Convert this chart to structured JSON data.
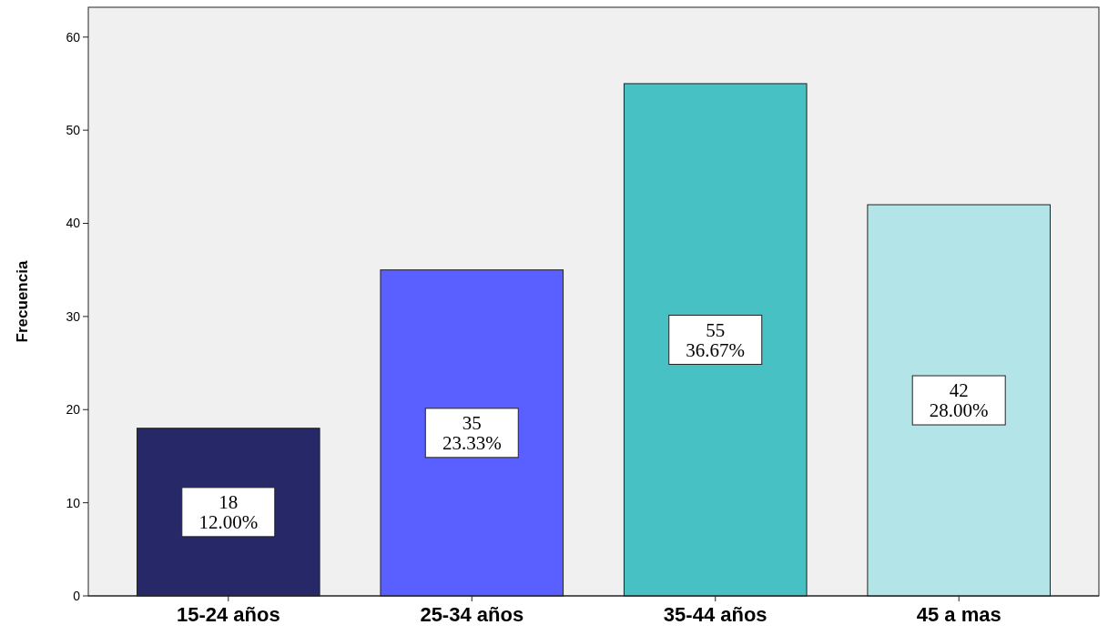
{
  "chart_data": {
    "type": "bar",
    "ylabel": "Frecuencia",
    "categories": [
      "15-24 años",
      "25-34 años",
      "35-44 años",
      "45 a mas"
    ],
    "values": [
      18,
      35,
      55,
      42
    ],
    "colors": [
      "#262868",
      "#5a5fff",
      "#48c1c5",
      "#b3e5e8"
    ],
    "value_labels": [
      "18\n12.00%",
      "35\n23.33%",
      "55\n36.67%",
      "42\n28.00%"
    ],
    "ylim": [
      0,
      63.2
    ],
    "yticks": [
      0,
      10,
      20,
      30,
      40,
      50,
      60
    ],
    "grid": false
  }
}
